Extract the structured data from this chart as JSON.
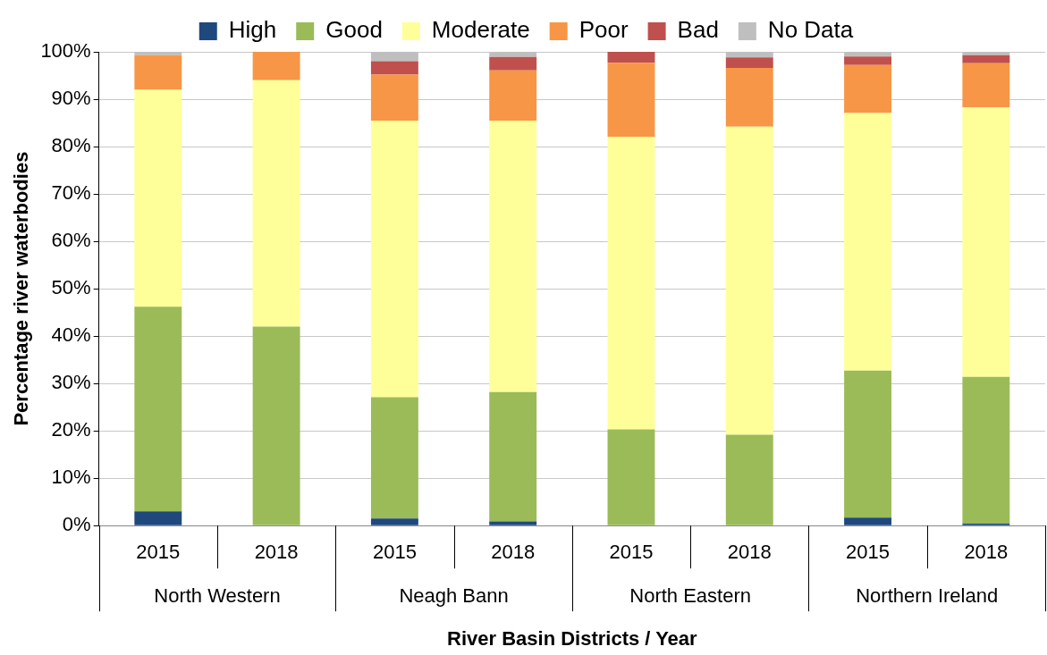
{
  "chart_data": {
    "type": "bar",
    "stacked": true,
    "xlabel": "River Basin Districts / Year",
    "ylabel": "Percentage river waterbodies",
    "categories": [
      "2015",
      "2018",
      "2015",
      "2018",
      "2015",
      "2018",
      "2015",
      "2018"
    ],
    "annotations": [
      "North Western",
      "Neagh Bann",
      "North Eastern",
      "Northern Ireland"
    ],
    "series": [
      {
        "name": "High",
        "color": "#1f497d",
        "values": [
          3.0,
          0,
          1.5,
          0.9,
          0,
          0,
          1.7,
          0.4
        ]
      },
      {
        "name": "Good",
        "color": "#9bbb59",
        "values": [
          43.2,
          42,
          25.6,
          27.3,
          20.3,
          19.2,
          31.0,
          31.0
        ]
      },
      {
        "name": "Moderate",
        "color": "#ffff99",
        "values": [
          45.8,
          52,
          58.4,
          57.3,
          61.8,
          65.0,
          54.4,
          56.9
        ]
      },
      {
        "name": "Poor",
        "color": "#f79646",
        "values": [
          7.3,
          6,
          9.7,
          10.6,
          15.6,
          12.4,
          10.1,
          9.3
        ]
      },
      {
        "name": "Bad",
        "color": "#c0504d",
        "values": [
          0,
          0,
          2.8,
          2.8,
          2.3,
          2.2,
          1.8,
          1.7
        ]
      },
      {
        "name": "No Data",
        "color": "#bfbfbf",
        "values": [
          0.7,
          0,
          2.0,
          1.1,
          0,
          1.2,
          1.1,
          0.7
        ]
      }
    ],
    "ylim": [
      0,
      100
    ],
    "yticks": [
      {
        "value": 0,
        "label": "0%"
      },
      {
        "value": 10,
        "label": "10%"
      },
      {
        "value": 20,
        "label": "20%"
      },
      {
        "value": 30,
        "label": "30%"
      },
      {
        "value": 40,
        "label": "40%"
      },
      {
        "value": 50,
        "label": "50%"
      },
      {
        "value": 60,
        "label": "60%"
      },
      {
        "value": 70,
        "label": "70%"
      },
      {
        "value": 80,
        "label": "80%"
      },
      {
        "value": 90,
        "label": "90%"
      },
      {
        "value": 100,
        "label": "100%"
      }
    ],
    "grid": "y",
    "legend": "top"
  }
}
